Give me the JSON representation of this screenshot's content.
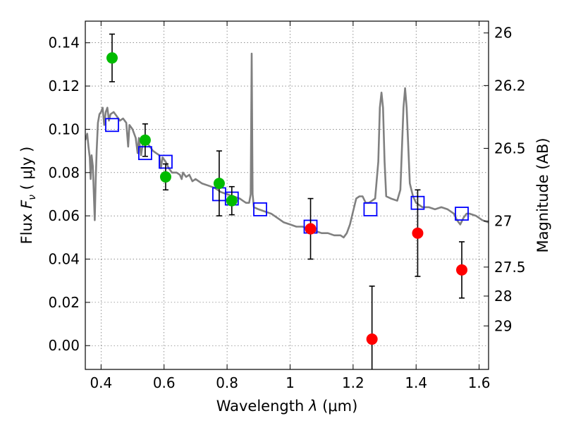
{
  "chart_data": {
    "type": "scatter",
    "title": "",
    "xlabel_prefix": "Wavelength  ",
    "xlabel_math": "λ",
    "xlabel_suffix": " (μm)",
    "ylabel_prefix": "Flux  ",
    "ylabel_math_main": "F",
    "ylabel_math_sub": "ν",
    "ylabel_suffix": "  ( μJy )",
    "ylabel_right": "Magnitude (AB)",
    "xlim": [
      0.35,
      1.63
    ],
    "ylim": [
      -0.011,
      0.15
    ],
    "grid": true,
    "x_ticks": [
      {
        "value": 0.4,
        "label": "0.4"
      },
      {
        "value": 0.6,
        "label": "0.6"
      },
      {
        "value": 0.8,
        "label": "0.8"
      },
      {
        "value": 1.0,
        "label": "1"
      },
      {
        "value": 1.2,
        "label": "1.2"
      },
      {
        "value": 1.4,
        "label": "1.4"
      },
      {
        "value": 1.6,
        "label": "1.6"
      }
    ],
    "y_ticks": [
      {
        "value": 0.0,
        "label": "0.00"
      },
      {
        "value": 0.02,
        "label": "0.02"
      },
      {
        "value": 0.04,
        "label": "0.04"
      },
      {
        "value": 0.06,
        "label": "0.06"
      },
      {
        "value": 0.08,
        "label": "0.08"
      },
      {
        "value": 0.1,
        "label": "0.10"
      },
      {
        "value": 0.12,
        "label": "0.12"
      },
      {
        "value": 0.14,
        "label": "0.14"
      }
    ],
    "right_ticks": [
      {
        "mag": 26,
        "label": "26"
      },
      {
        "mag": 26.2,
        "label": "26.2"
      },
      {
        "mag": 26.5,
        "label": "26.5"
      },
      {
        "mag": 27,
        "label": "27"
      },
      {
        "mag": 27.5,
        "label": "27.5"
      },
      {
        "mag": 28,
        "label": "28"
      },
      {
        "mag": 29,
        "label": "29"
      }
    ],
    "colors": {
      "green": "#00bb00",
      "red": "#ff0000",
      "blue": "#0000ff",
      "model": "#808080",
      "error": "#000000"
    },
    "series": [
      {
        "name": "model spectrum",
        "kind": "line",
        "points": [
          [
            0.35,
            0.095
          ],
          [
            0.356,
            0.098
          ],
          [
            0.36,
            0.092
          ],
          [
            0.364,
            0.087
          ],
          [
            0.367,
            0.077
          ],
          [
            0.37,
            0.088
          ],
          [
            0.374,
            0.083
          ],
          [
            0.377,
            0.07
          ],
          [
            0.38,
            0.058
          ],
          [
            0.383,
            0.076
          ],
          [
            0.386,
            0.09
          ],
          [
            0.39,
            0.103
          ],
          [
            0.395,
            0.107
          ],
          [
            0.4,
            0.108
          ],
          [
            0.405,
            0.11
          ],
          [
            0.41,
            0.102
          ],
          [
            0.415,
            0.108
          ],
          [
            0.42,
            0.11
          ],
          [
            0.425,
            0.104
          ],
          [
            0.43,
            0.107
          ],
          [
            0.44,
            0.108
          ],
          [
            0.45,
            0.106
          ],
          [
            0.46,
            0.104
          ],
          [
            0.47,
            0.105
          ],
          [
            0.48,
            0.103
          ],
          [
            0.486,
            0.092
          ],
          [
            0.49,
            0.102
          ],
          [
            0.5,
            0.1
          ],
          [
            0.51,
            0.096
          ],
          [
            0.516,
            0.089
          ],
          [
            0.52,
            0.096
          ],
          [
            0.527,
            0.088
          ],
          [
            0.535,
            0.096
          ],
          [
            0.545,
            0.094
          ],
          [
            0.555,
            0.092
          ],
          [
            0.565,
            0.09
          ],
          [
            0.575,
            0.089
          ],
          [
            0.585,
            0.088
          ],
          [
            0.59,
            0.082
          ],
          [
            0.595,
            0.087
          ],
          [
            0.605,
            0.085
          ],
          [
            0.615,
            0.082
          ],
          [
            0.625,
            0.08
          ],
          [
            0.64,
            0.08
          ],
          [
            0.65,
            0.079
          ],
          [
            0.656,
            0.077
          ],
          [
            0.66,
            0.08
          ],
          [
            0.67,
            0.078
          ],
          [
            0.68,
            0.079
          ],
          [
            0.69,
            0.076
          ],
          [
            0.7,
            0.077
          ],
          [
            0.72,
            0.075
          ],
          [
            0.74,
            0.074
          ],
          [
            0.76,
            0.073
          ],
          [
            0.77,
            0.072
          ],
          [
            0.78,
            0.071
          ],
          [
            0.8,
            0.07
          ],
          [
            0.82,
            0.069
          ],
          [
            0.84,
            0.068
          ],
          [
            0.85,
            0.067
          ],
          [
            0.86,
            0.066
          ],
          [
            0.87,
            0.066
          ],
          [
            0.875,
            0.07
          ],
          [
            0.878,
            0.135
          ],
          [
            0.881,
            0.07
          ],
          [
            0.885,
            0.064
          ],
          [
            0.9,
            0.063
          ],
          [
            0.92,
            0.062
          ],
          [
            0.94,
            0.061
          ],
          [
            0.96,
            0.059
          ],
          [
            0.98,
            0.057
          ],
          [
            1.0,
            0.056
          ],
          [
            1.02,
            0.055
          ],
          [
            1.04,
            0.055
          ],
          [
            1.06,
            0.054
          ],
          [
            1.08,
            0.053
          ],
          [
            1.1,
            0.052
          ],
          [
            1.12,
            0.052
          ],
          [
            1.14,
            0.051
          ],
          [
            1.16,
            0.051
          ],
          [
            1.17,
            0.05
          ],
          [
            1.18,
            0.052
          ],
          [
            1.19,
            0.056
          ],
          [
            1.2,
            0.062
          ],
          [
            1.21,
            0.068
          ],
          [
            1.22,
            0.069
          ],
          [
            1.23,
            0.069
          ],
          [
            1.24,
            0.066
          ],
          [
            1.25,
            0.066
          ],
          [
            1.26,
            0.067
          ],
          [
            1.27,
            0.068
          ],
          [
            1.28,
            0.085
          ],
          [
            1.285,
            0.11
          ],
          [
            1.29,
            0.117
          ],
          [
            1.295,
            0.11
          ],
          [
            1.3,
            0.085
          ],
          [
            1.305,
            0.069
          ],
          [
            1.32,
            0.068
          ],
          [
            1.34,
            0.067
          ],
          [
            1.35,
            0.072
          ],
          [
            1.36,
            0.11
          ],
          [
            1.365,
            0.119
          ],
          [
            1.37,
            0.11
          ],
          [
            1.38,
            0.075
          ],
          [
            1.39,
            0.069
          ],
          [
            1.4,
            0.066
          ],
          [
            1.42,
            0.064
          ],
          [
            1.44,
            0.064
          ],
          [
            1.46,
            0.063
          ],
          [
            1.48,
            0.064
          ],
          [
            1.5,
            0.063
          ],
          [
            1.52,
            0.061
          ],
          [
            1.53,
            0.058
          ],
          [
            1.54,
            0.056
          ],
          [
            1.55,
            0.059
          ],
          [
            1.56,
            0.061
          ],
          [
            1.57,
            0.061
          ],
          [
            1.59,
            0.06
          ],
          [
            1.61,
            0.058
          ],
          [
            1.63,
            0.057
          ]
        ]
      },
      {
        "name": "green detections",
        "kind": "points",
        "points": [
          {
            "x": 0.435,
            "y": 0.133,
            "err": 0.011
          },
          {
            "x": 0.54,
            "y": 0.095,
            "err": 0.0075
          },
          {
            "x": 0.605,
            "y": 0.078,
            "err": 0.006
          },
          {
            "x": 0.775,
            "y": 0.075,
            "err": 0.015
          },
          {
            "x": 0.815,
            "y": 0.067,
            "err": 0.0065
          }
        ]
      },
      {
        "name": "red detections",
        "kind": "points",
        "points": [
          {
            "x": 1.065,
            "y": 0.054,
            "err": 0.014
          },
          {
            "x": 1.26,
            "y": 0.003,
            "err": 0.0245
          },
          {
            "x": 1.405,
            "y": 0.052,
            "err": 0.02
          },
          {
            "x": 1.545,
            "y": 0.035,
            "err": 0.013
          }
        ]
      },
      {
        "name": "model synthetic photometry",
        "kind": "squares",
        "points": [
          {
            "x": 0.435,
            "y": 0.102
          },
          {
            "x": 0.54,
            "y": 0.089
          },
          {
            "x": 0.605,
            "y": 0.085
          },
          {
            "x": 0.775,
            "y": 0.07
          },
          {
            "x": 0.815,
            "y": 0.068
          },
          {
            "x": 0.905,
            "y": 0.063
          },
          {
            "x": 1.065,
            "y": 0.055
          },
          {
            "x": 1.255,
            "y": 0.063
          },
          {
            "x": 1.405,
            "y": 0.066
          },
          {
            "x": 1.545,
            "y": 0.061
          }
        ]
      }
    ]
  }
}
